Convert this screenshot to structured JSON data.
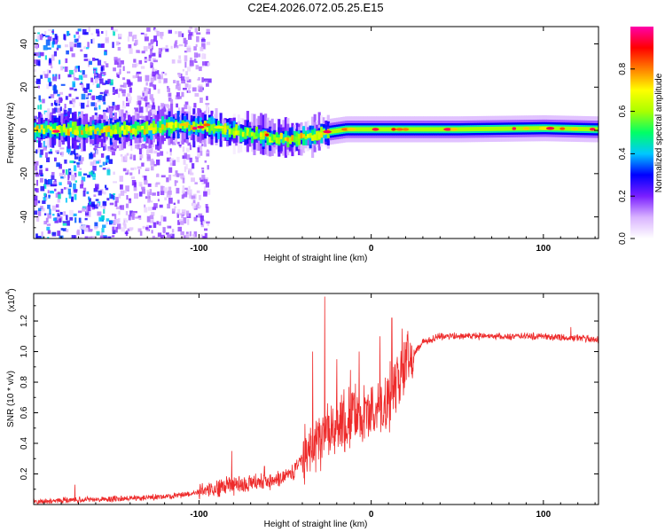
{
  "figure_title": "C2E4.2026.072.05.25.E15",
  "chart_data": [
    {
      "type": "heatmap",
      "title": "C2E4.2026.072.05.25.E15",
      "xlabel": "Height of straight line (km)",
      "ylabel": "Frequency (Hz)",
      "xlim": [
        -196,
        132
      ],
      "ylim": [
        -50,
        48
      ],
      "x_ticks": [
        -100,
        0,
        100
      ],
      "x_tick_labels": [
        "-100",
        "0",
        "100"
      ],
      "y_ticks": [
        -40,
        -20,
        0,
        20,
        40
      ],
      "y_tick_labels": [
        "-40",
        "-20",
        "0",
        "20",
        "40"
      ],
      "colorbar": {
        "label": "Normalized spectral amplitude",
        "range": [
          0,
          1
        ],
        "ticks": [
          0.0,
          0.2,
          0.4,
          0.6,
          0.8
        ],
        "tick_labels": [
          "0.0",
          "0.2",
          "0.4",
          "0.6",
          "0.8"
        ],
        "colormap": [
          "#ffffff",
          "#d9b3ff",
          "#7a1fff",
          "#0000ff",
          "#00c8ff",
          "#00ff66",
          "#aaff00",
          "#ffff00",
          "#ff7f00",
          "#ff0000",
          "#ff00aa"
        ]
      },
      "ridge_frequency_hz": [
        {
          "x": -185,
          "y": 0.5
        },
        {
          "x": -160,
          "y": 0.0
        },
        {
          "x": -130,
          "y": 0.5
        },
        {
          "x": -110,
          "y": 2.5
        },
        {
          "x": -90,
          "y": 1.0
        },
        {
          "x": -70,
          "y": -2.0
        },
        {
          "x": -50,
          "y": -4.0
        },
        {
          "x": -38,
          "y": -3.0
        },
        {
          "x": -28,
          "y": -1.0
        },
        {
          "x": -15,
          "y": 0.5
        },
        {
          "x": 0,
          "y": 0.5
        },
        {
          "x": 50,
          "y": 0.5
        },
        {
          "x": 100,
          "y": 1.0
        },
        {
          "x": 130,
          "y": 0.5
        }
      ],
      "broadband_noise_until_km": -105
    },
    {
      "type": "line",
      "title": "",
      "xlabel": "Height of straight line (km)",
      "ylabel": "SNR (10 * v/v)",
      "y_multiplier_label": "(x10",
      "y_multiplier_exp": "4",
      "y_multiplier_close": ")",
      "xlim": [
        -196,
        132
      ],
      "ylim": [
        0,
        1.38
      ],
      "x_ticks": [
        -100,
        0,
        100
      ],
      "x_tick_labels": [
        "-100",
        "0",
        "100"
      ],
      "y_ticks": [
        0.2,
        0.4,
        0.6,
        0.8,
        1.0,
        1.2
      ],
      "y_tick_labels": [
        "0.2",
        "0.4",
        "0.6",
        "0.8",
        "1.0",
        "1.2"
      ],
      "series": [
        {
          "name": "SNR",
          "color": "#ee2b2b",
          "baseline": [
            [
              -196,
              0.02
            ],
            [
              -170,
              0.03
            ],
            [
              -140,
              0.04
            ],
            [
              -120,
              0.05
            ],
            [
              -100,
              0.08
            ],
            [
              -85,
              0.12
            ],
            [
              -70,
              0.14
            ],
            [
              -55,
              0.16
            ],
            [
              -45,
              0.22
            ],
            [
              -38,
              0.34
            ],
            [
              -32,
              0.42
            ],
            [
              -28,
              0.45
            ],
            [
              -22,
              0.5
            ],
            [
              -15,
              0.55
            ],
            [
              -8,
              0.58
            ],
            [
              0,
              0.6
            ],
            [
              8,
              0.65
            ],
            [
              15,
              0.8
            ],
            [
              22,
              0.95
            ],
            [
              30,
              1.06
            ],
            [
              40,
              1.1
            ],
            [
              60,
              1.1
            ],
            [
              80,
              1.1
            ],
            [
              100,
              1.1
            ],
            [
              115,
              1.09
            ],
            [
              132,
              1.08
            ]
          ],
          "peaks": [
            [
              -172,
              0.13
            ],
            [
              -81,
              0.35
            ],
            [
              -62,
              0.25
            ],
            [
              -34,
              1.0
            ],
            [
              -27,
              1.36
            ],
            [
              -20,
              0.95
            ],
            [
              -12,
              0.88
            ],
            [
              -7,
              1.0
            ],
            [
              5,
              1.1
            ],
            [
              12,
              1.22
            ],
            [
              18,
              1.15
            ],
            [
              116,
              1.16
            ]
          ]
        }
      ]
    }
  ]
}
